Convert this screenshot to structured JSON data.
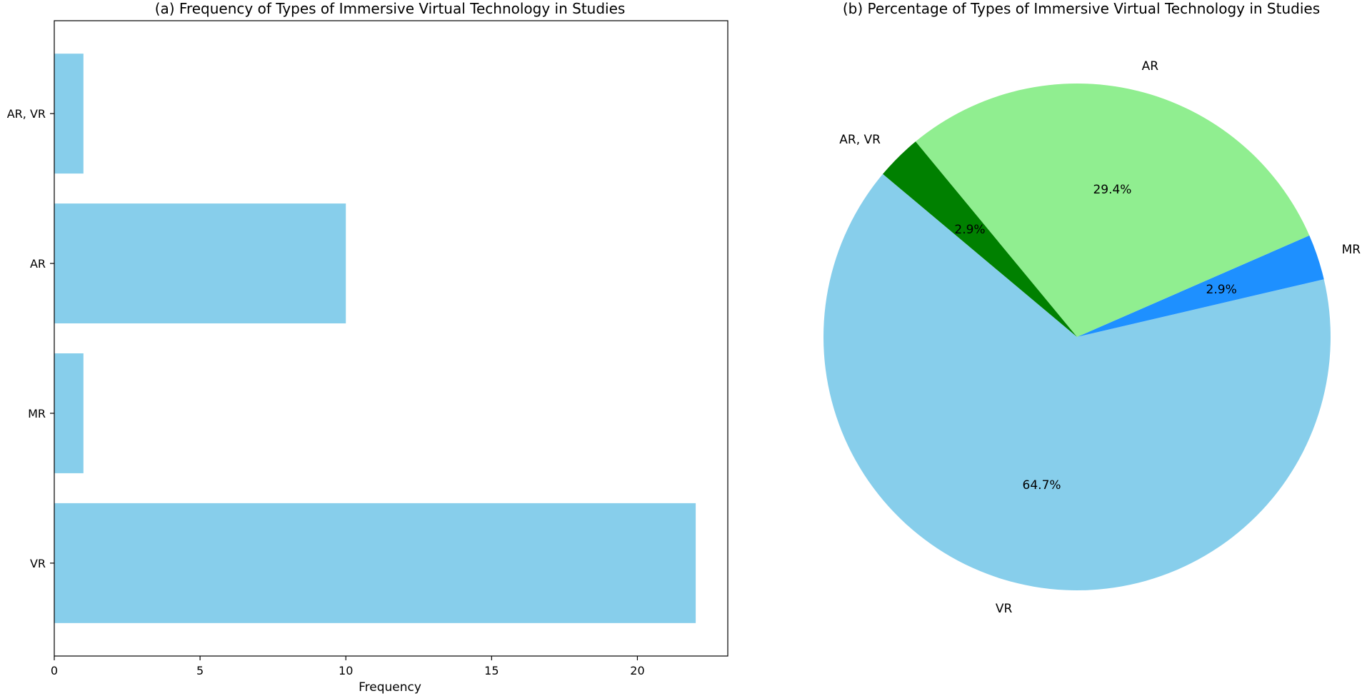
{
  "chart_data": [
    {
      "type": "bar",
      "orientation": "horizontal",
      "title": "(a) Frequency of Types of Immersive Virtual Technology in Studies",
      "xlabel": "Frequency",
      "ylabel": "",
      "categories": [
        "VR",
        "MR",
        "AR",
        "AR, VR"
      ],
      "values": [
        22,
        1,
        10,
        1
      ],
      "xlim": [
        0,
        23.1
      ],
      "xticks": [
        0,
        5,
        10,
        15,
        20
      ],
      "bar_color": "#87CEEB",
      "grid": false
    },
    {
      "type": "pie",
      "title": "(b) Percentage of Types of Immersive Virtual Technology in Studies",
      "start_angle_deg": 140,
      "direction": "counterclockwise",
      "slices": [
        {
          "label": "VR",
          "value": 64.7,
          "pct_label": "64.7%",
          "color": "#87CEEB"
        },
        {
          "label": "MR",
          "value": 2.9,
          "pct_label": "2.9%",
          "color": "#1E90FF"
        },
        {
          "label": "AR",
          "value": 29.4,
          "pct_label": "29.4%",
          "color": "#90EE90"
        },
        {
          "label": "AR, VR",
          "value": 2.9,
          "pct_label": "2.9%",
          "color": "#008000"
        }
      ]
    }
  ]
}
